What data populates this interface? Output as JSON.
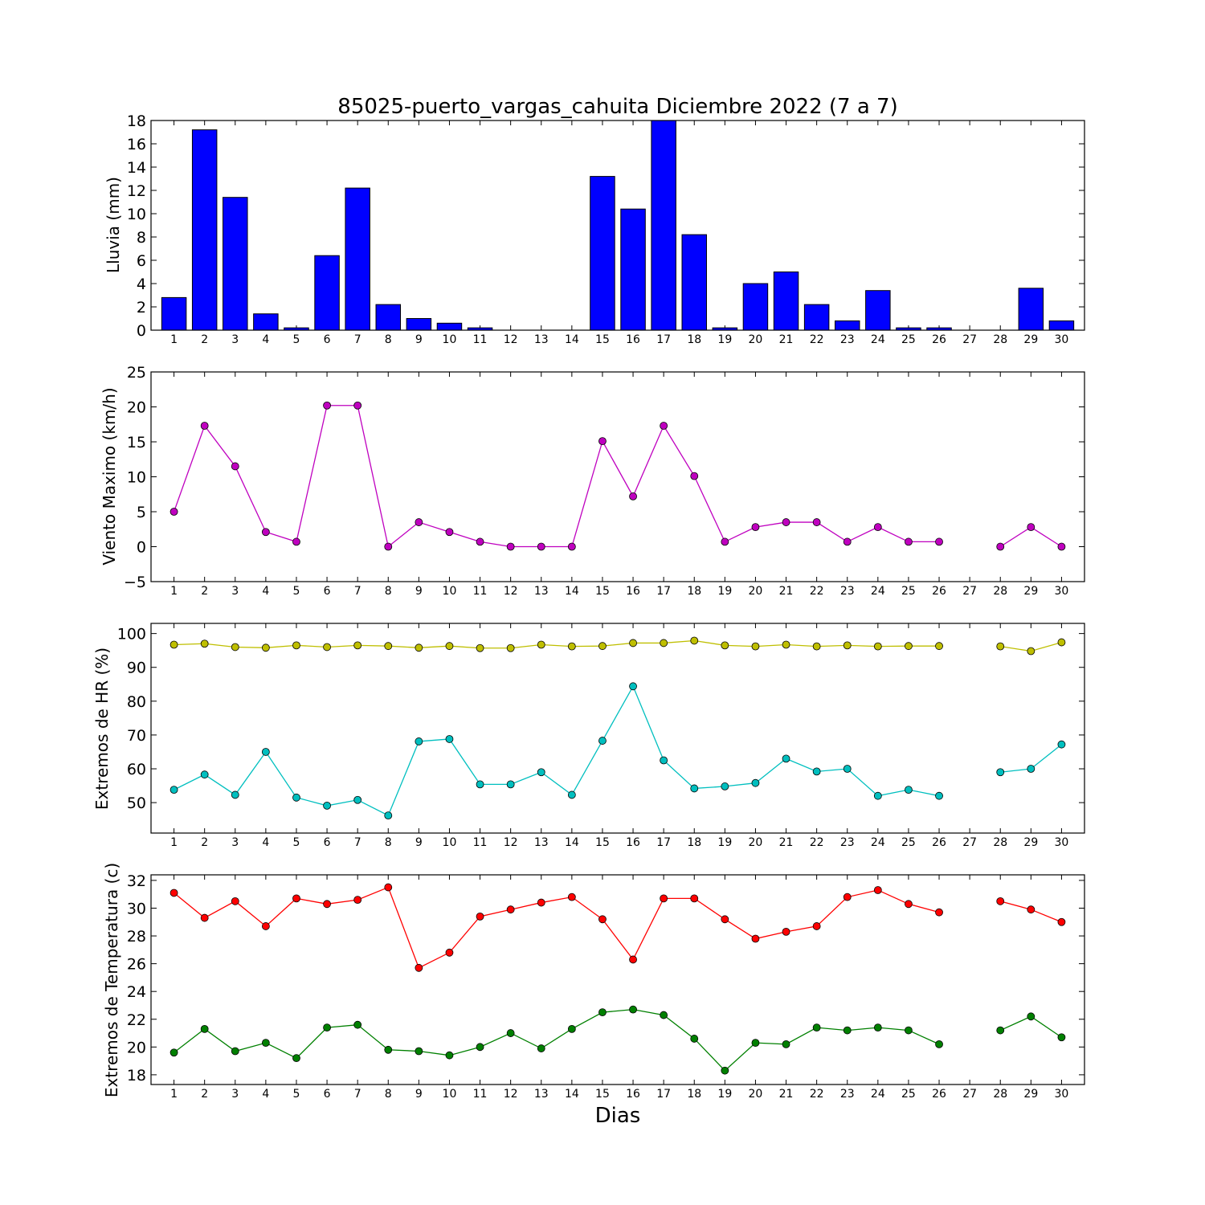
{
  "chart_data": [
    {
      "type": "bar",
      "title": "85025-puerto_vargas_cahuita Diciembre 2022  (7 a 7)",
      "ylabel": "Lluvia (mm)",
      "ylim": [
        0,
        18
      ],
      "yticks": [
        0,
        2,
        4,
        6,
        8,
        10,
        12,
        14,
        16,
        18
      ],
      "categories": [
        "1",
        "2",
        "3",
        "4",
        "5",
        "6",
        "7",
        "8",
        "9",
        "10",
        "11",
        "12",
        "13",
        "14",
        "15",
        "16",
        "17",
        "18",
        "19",
        "20",
        "21",
        "22",
        "23",
        "24",
        "25",
        "26",
        "27",
        "28",
        "29",
        "30"
      ],
      "series": [
        {
          "color": "#0000ff",
          "values": [
            2.8,
            17.2,
            11.4,
            1.4,
            0.2,
            6.4,
            12.2,
            2.2,
            1.0,
            0.6,
            0.2,
            0,
            0,
            0,
            13.2,
            10.4,
            18.0,
            8.2,
            0.2,
            4.0,
            5.0,
            2.2,
            0.8,
            3.4,
            0.2,
            0.2,
            0,
            0,
            3.6,
            0.8
          ]
        }
      ]
    },
    {
      "type": "line",
      "ylabel": "Viento Maximo (km/h)",
      "ylim": [
        -5,
        25
      ],
      "yticks": [
        -5,
        0,
        5,
        10,
        15,
        20,
        25
      ],
      "categories": [
        "1",
        "2",
        "3",
        "4",
        "5",
        "6",
        "7",
        "8",
        "9",
        "10",
        "11",
        "12",
        "13",
        "14",
        "15",
        "16",
        "17",
        "18",
        "19",
        "20",
        "21",
        "22",
        "23",
        "24",
        "25",
        "26",
        "27",
        "28",
        "29",
        "30"
      ],
      "series": [
        {
          "color": "#bf00bf",
          "values": [
            5.0,
            17.3,
            11.5,
            2.1,
            0.7,
            20.2,
            20.2,
            0.0,
            3.5,
            2.1,
            0.7,
            0.0,
            0.0,
            0.0,
            15.1,
            7.2,
            17.3,
            10.1,
            0.7,
            2.8,
            3.5,
            3.5,
            0.7,
            2.8,
            0.7,
            0.7,
            null,
            0.0,
            2.8,
            0.0
          ]
        }
      ]
    },
    {
      "type": "line",
      "ylabel": "Extremos de HR (%)",
      "ylim": [
        41,
        103
      ],
      "yticks": [
        50,
        60,
        70,
        80,
        90,
        100
      ],
      "categories": [
        "1",
        "2",
        "3",
        "4",
        "5",
        "6",
        "7",
        "8",
        "9",
        "10",
        "11",
        "12",
        "13",
        "14",
        "15",
        "16",
        "17",
        "18",
        "19",
        "20",
        "21",
        "22",
        "23",
        "24",
        "25",
        "26",
        "27",
        "28",
        "29",
        "30"
      ],
      "series": [
        {
          "color": "#bfbf00",
          "values": [
            96.7,
            97.0,
            96.0,
            95.8,
            96.5,
            96.0,
            96.5,
            96.3,
            95.8,
            96.3,
            95.7,
            95.7,
            96.7,
            96.2,
            96.3,
            97.2,
            97.2,
            97.9,
            96.5,
            96.2,
            96.7,
            96.2,
            96.5,
            96.2,
            96.3,
            96.3,
            null,
            96.2,
            94.8,
            97.4
          ]
        },
        {
          "color": "#00bfbf",
          "values": [
            53.8,
            58.3,
            52.3,
            65.0,
            51.5,
            49.1,
            50.8,
            46.2,
            68.1,
            68.8,
            55.4,
            55.4,
            59.0,
            52.3,
            68.3,
            84.4,
            62.5,
            54.2,
            54.8,
            55.8,
            63.0,
            59.2,
            60.0,
            52.0,
            53.8,
            52.0,
            null,
            59.0,
            60.0,
            67.2
          ]
        }
      ]
    },
    {
      "type": "line",
      "ylabel": "Extremos de Temperatura (c)",
      "xlabel": "Dias",
      "ylim": [
        17.3,
        32.4
      ],
      "yticks": [
        18,
        20,
        22,
        24,
        26,
        28,
        30,
        32
      ],
      "categories": [
        "1",
        "2",
        "3",
        "4",
        "5",
        "6",
        "7",
        "8",
        "9",
        "10",
        "11",
        "12",
        "13",
        "14",
        "15",
        "16",
        "17",
        "18",
        "19",
        "20",
        "21",
        "22",
        "23",
        "24",
        "25",
        "26",
        "27",
        "28",
        "29",
        "30"
      ],
      "series": [
        {
          "color": "#ff0000",
          "values": [
            31.1,
            29.3,
            30.5,
            28.7,
            30.7,
            30.3,
            30.6,
            31.5,
            25.7,
            26.8,
            29.4,
            29.9,
            30.4,
            30.8,
            29.2,
            26.3,
            30.7,
            30.7,
            29.2,
            27.8,
            28.3,
            28.7,
            30.8,
            31.3,
            30.3,
            29.7,
            null,
            30.5,
            29.9,
            29.0
          ]
        },
        {
          "color": "#008000",
          "values": [
            19.6,
            21.3,
            19.7,
            20.3,
            19.2,
            21.4,
            21.6,
            19.8,
            19.7,
            19.4,
            20.0,
            21.0,
            19.9,
            21.3,
            22.5,
            22.7,
            22.3,
            20.6,
            18.3,
            20.3,
            20.2,
            21.4,
            21.2,
            21.4,
            21.2,
            20.2,
            null,
            21.2,
            22.2,
            20.7
          ]
        }
      ]
    }
  ]
}
